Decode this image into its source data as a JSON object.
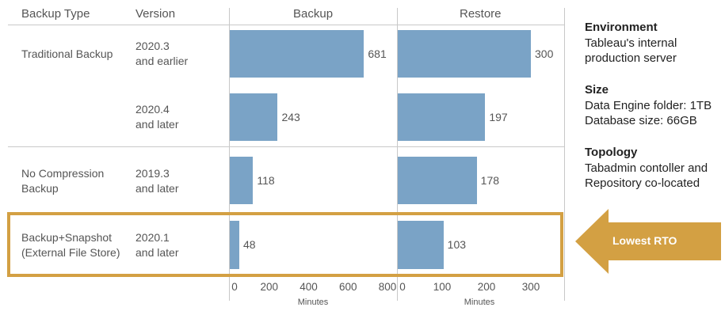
{
  "headers": {
    "backup_type": "Backup Type",
    "version": "Version",
    "backup": "Backup",
    "restore": "Restore"
  },
  "rows": [
    {
      "type_line1": "Traditional Backup",
      "type_line2": "",
      "version_line1": "2020.3",
      "version_line2": "and earlier"
    },
    {
      "type_line1": "",
      "type_line2": "",
      "version_line1": "2020.4",
      "version_line2": "and later"
    },
    {
      "type_line1": "No Compression",
      "type_line2": "Backup",
      "version_line1": "2019.3",
      "version_line2": "and later"
    },
    {
      "type_line1": "Backup+Snapshot",
      "type_line2": "(External File Store)",
      "version_line1": "2020.1",
      "version_line2": "and later"
    }
  ],
  "chart_data": [
    {
      "type": "bar",
      "orientation": "horizontal",
      "title": "Backup",
      "xlabel": "Minutes",
      "xlim": [
        0,
        800
      ],
      "ticks": [
        "0",
        "200",
        "400",
        "600",
        "800"
      ],
      "values": [
        681,
        243,
        118,
        48
      ],
      "value_labels": [
        "681",
        "243",
        "118",
        "48"
      ]
    },
    {
      "type": "bar",
      "orientation": "horizontal",
      "title": "Restore",
      "xlabel": "Minutes",
      "xlim": [
        0,
        360
      ],
      "ticks": [
        "0",
        "100",
        "200",
        "300"
      ],
      "values": [
        300,
        197,
        178,
        103
      ],
      "value_labels": [
        "300",
        "197",
        "178",
        "103"
      ]
    }
  ],
  "sidebar": {
    "environment_title": "Environment",
    "environment_line1": "Tableau's internal",
    "environment_line2": "production server",
    "size_title": "Size",
    "size_line1": "Data Engine folder: 1TB",
    "size_line2": "Database size: 66GB",
    "topology_title": "Topology",
    "topology_line1": "Tabadmin contoller and",
    "topology_line2": "Repository co-located"
  },
  "callout": {
    "label": "Lowest RTO"
  },
  "colors": {
    "bar": "#7aa3c6",
    "highlight": "#d3a043",
    "text": "#555555"
  }
}
